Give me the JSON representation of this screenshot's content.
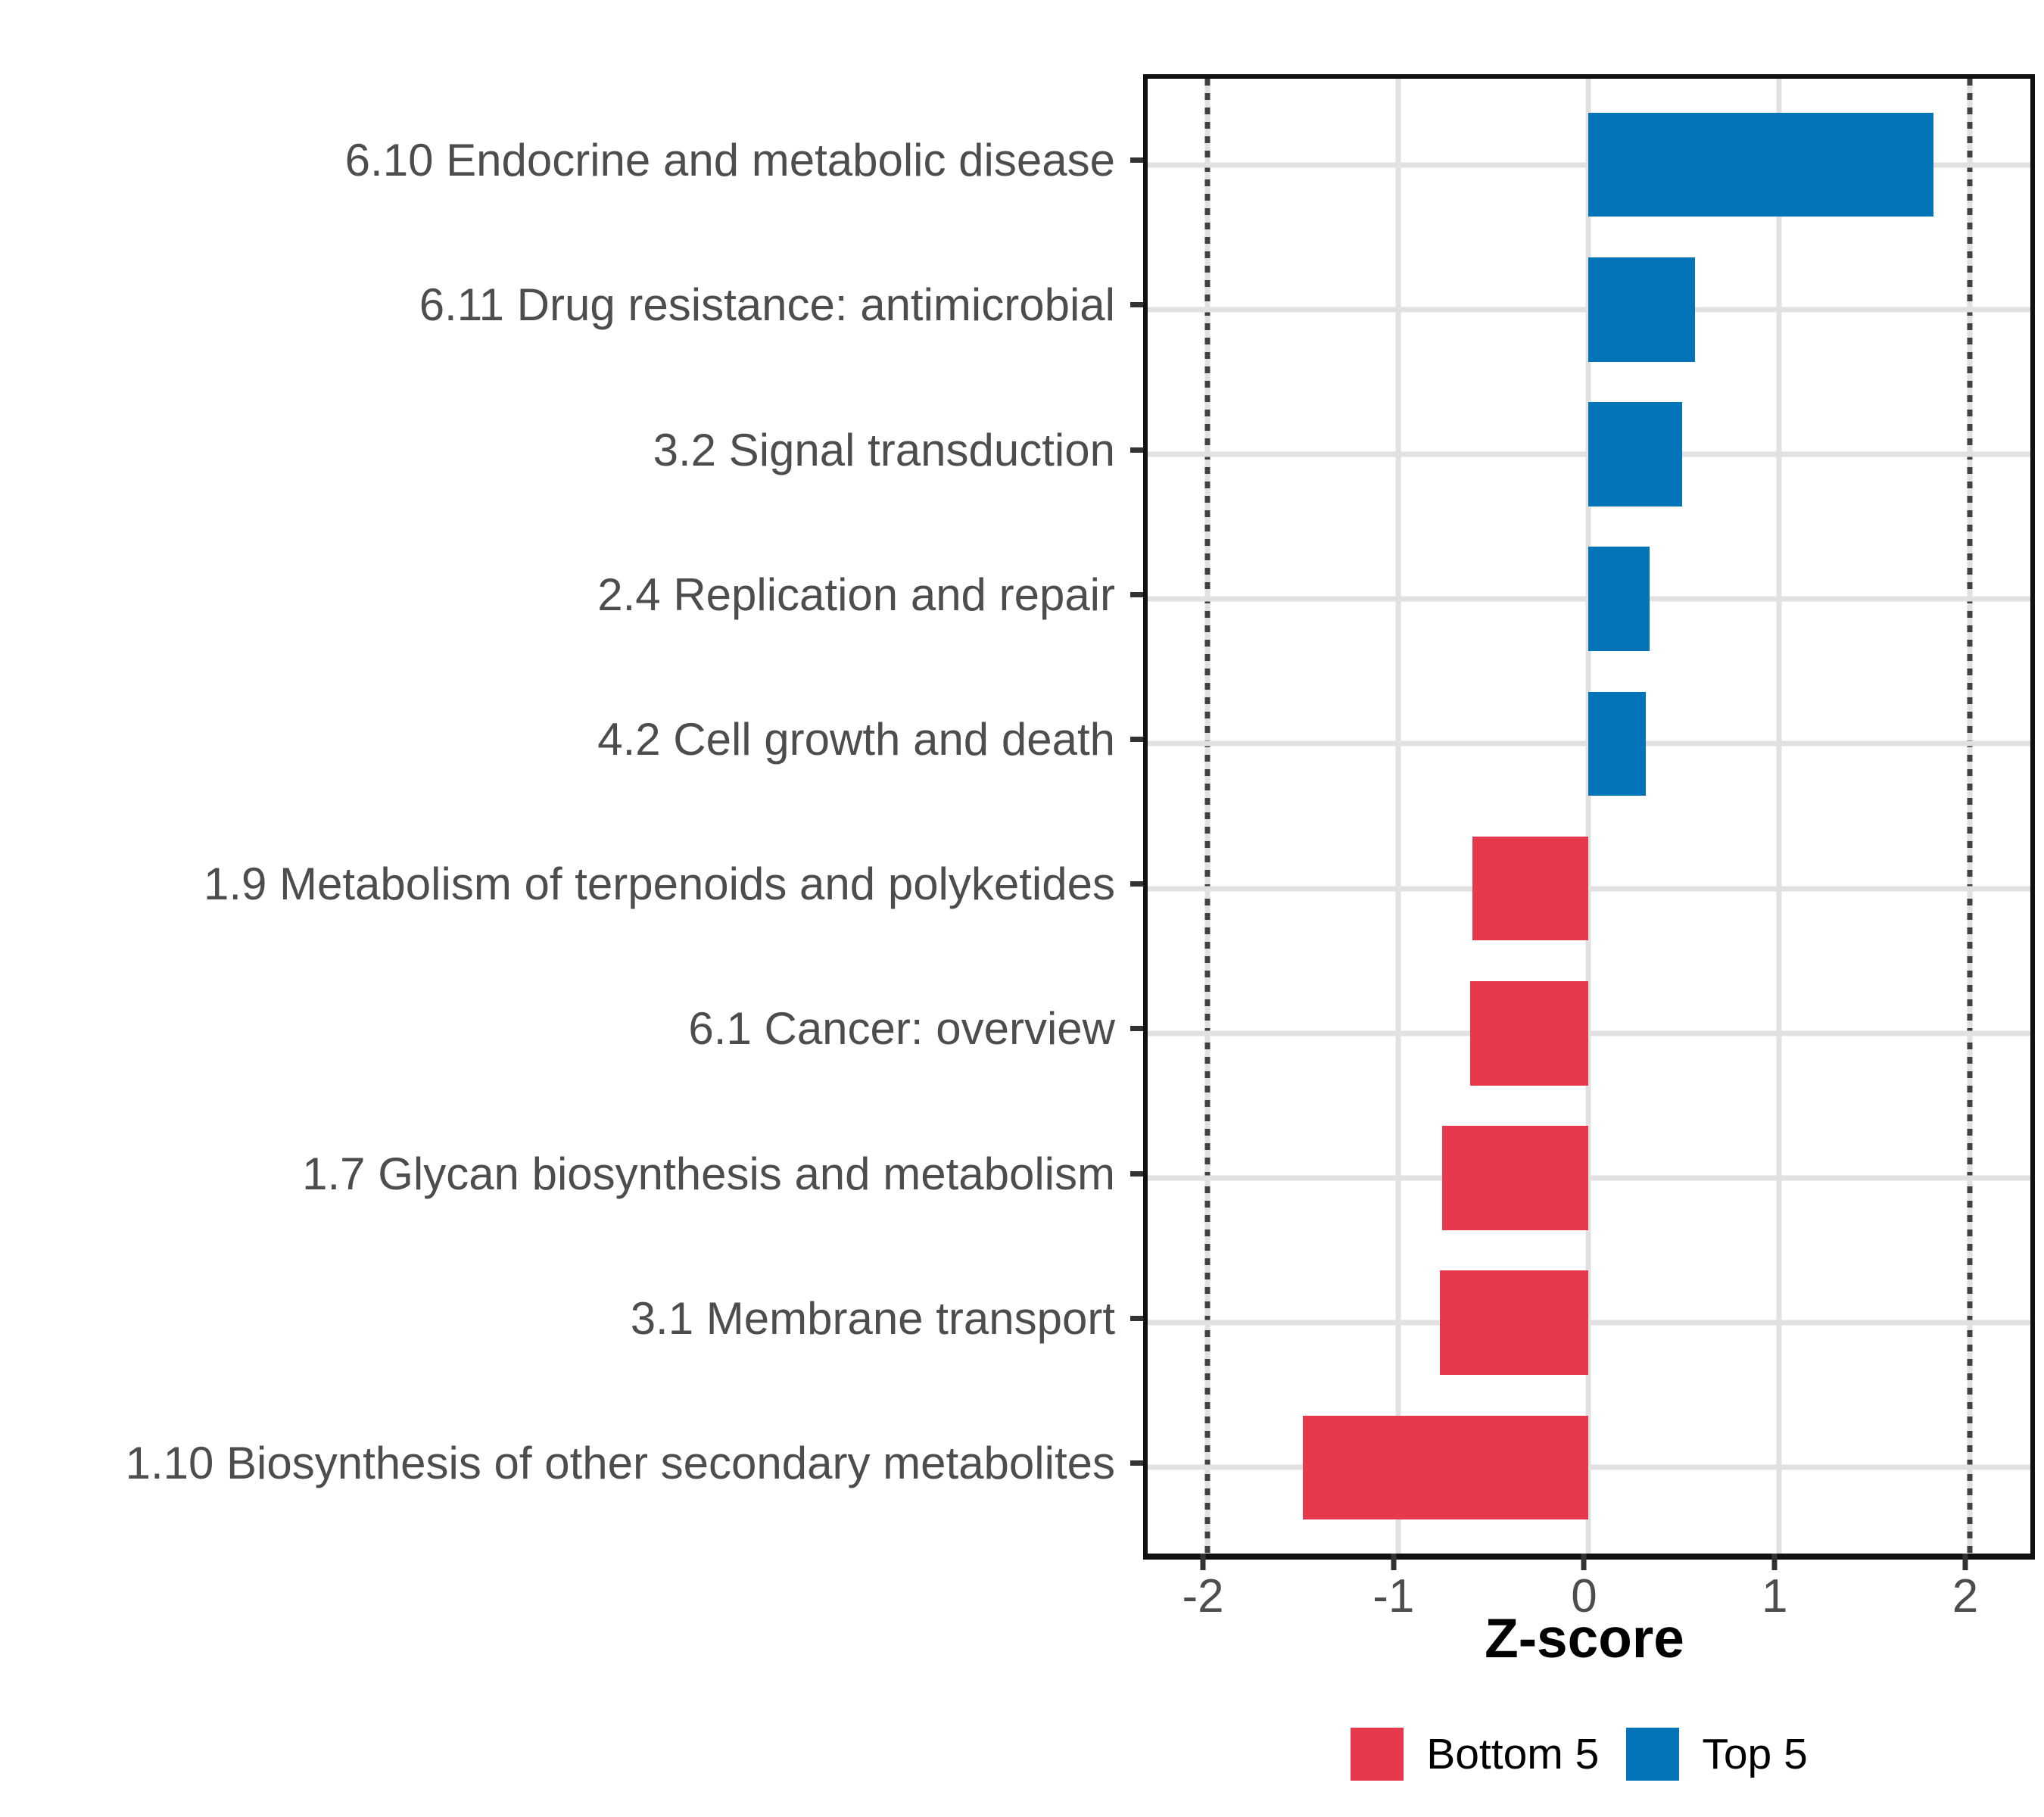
{
  "chart_data": {
    "type": "bar",
    "orientation": "horizontal",
    "title": "",
    "xlabel": "Z-score",
    "ylabel": "",
    "xlim": [
      -2.314,
      2.318
    ],
    "x_ticks": [
      -2,
      -1,
      0,
      1,
      2
    ],
    "x_tick_labels": [
      "-2",
      "-1",
      "0",
      "1",
      "2"
    ],
    "reference_lines": [
      -2,
      2
    ],
    "grid": "major x gridlines and one horizontal gridline per category row",
    "legend_position": "bottom",
    "categories": [
      "6.10 Endocrine and metabolic disease",
      "6.11 Drug resistance: antimicrobial",
      "3.2 Signal transduction",
      "2.4 Replication and repair",
      "4.2 Cell growth and death",
      "1.9 Metabolism of terpenoids and polyketides",
      "6.1 Cancer: overview",
      "1.7 Glycan biosynthesis and metabolism",
      "3.1 Membrane transport",
      "1.10 Biosynthesis of other secondary metabolites"
    ],
    "values": [
      1.81,
      0.56,
      0.49,
      0.32,
      0.3,
      -0.61,
      -0.62,
      -0.77,
      -0.78,
      -1.5
    ],
    "groups": [
      "Top 5",
      "Top 5",
      "Top 5",
      "Top 5",
      "Top 5",
      "Bottom 5",
      "Bottom 5",
      "Bottom 5",
      "Bottom 5",
      "Bottom 5"
    ],
    "series_colors": {
      "Bottom 5": "#E6394B",
      "Top 5": "#0374B8"
    },
    "legend": {
      "entries": [
        {
          "label": "Bottom 5",
          "color": "#E6394B"
        },
        {
          "label": "Top 5",
          "color": "#0374B8"
        }
      ]
    }
  },
  "colors": {
    "axis_text": "#4D4D4D",
    "axis_line": "#111111",
    "gridline": "#E1E1E1",
    "reference_line": "#414141",
    "background": "#FFFFFF"
  }
}
